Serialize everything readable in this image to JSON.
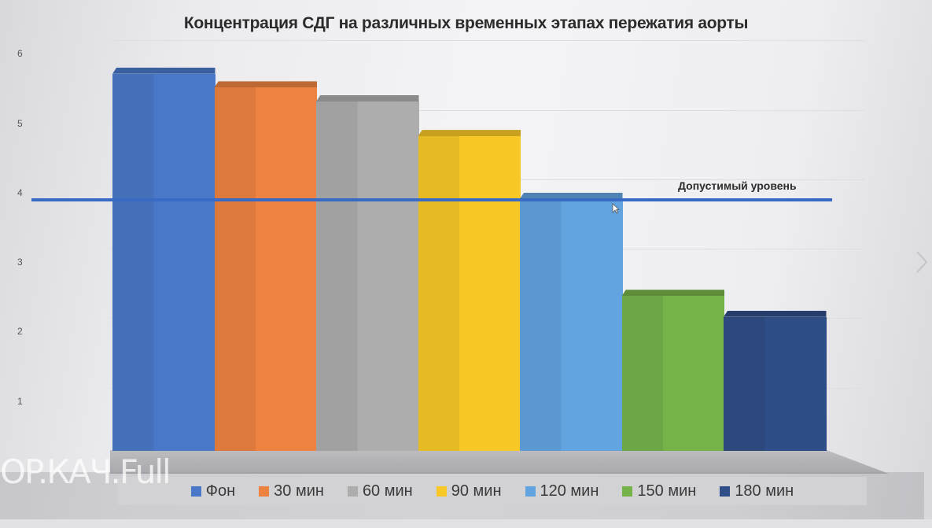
{
  "chart_data": {
    "type": "bar",
    "title": "Концентрация СДГ на различных временных этапах пережатия аорты",
    "xlabel": "",
    "ylabel": "",
    "ylim": [
      0,
      6
    ],
    "yticks": [
      "1",
      "2",
      "3",
      "4",
      "5",
      "6"
    ],
    "grid": true,
    "legend_position": "bottom",
    "categories": [
      "Фон",
      "30 мин",
      "60 мин",
      "90 мин",
      "120 мин",
      "150 мин",
      "180 мин"
    ],
    "values": [
      5.7,
      5.5,
      5.3,
      4.8,
      3.9,
      2.5,
      2.2
    ],
    "colors": [
      "#4a78c8",
      "#ee8240",
      "#adadad",
      "#f7c826",
      "#62a4e0",
      "#75b249",
      "#2f4d86"
    ],
    "reference_line": {
      "label": "Допустимый уровень",
      "value": 3.9,
      "color": "#3a6bc4"
    },
    "style": "3d-column"
  },
  "legend": [
    {
      "label": "Фон",
      "color": "#4a78c8"
    },
    {
      "label": "30 мин",
      "color": "#ee8240"
    },
    {
      "label": "60 мин",
      "color": "#adadad"
    },
    {
      "label": "90 мин",
      "color": "#f7c826"
    },
    {
      "label": "120 мин",
      "color": "#62a4e0"
    },
    {
      "label": "150 мин",
      "color": "#75b249"
    },
    {
      "label": "180 мин",
      "color": "#2f4d86"
    }
  ],
  "watermark": "OP.КАЧ.Full"
}
